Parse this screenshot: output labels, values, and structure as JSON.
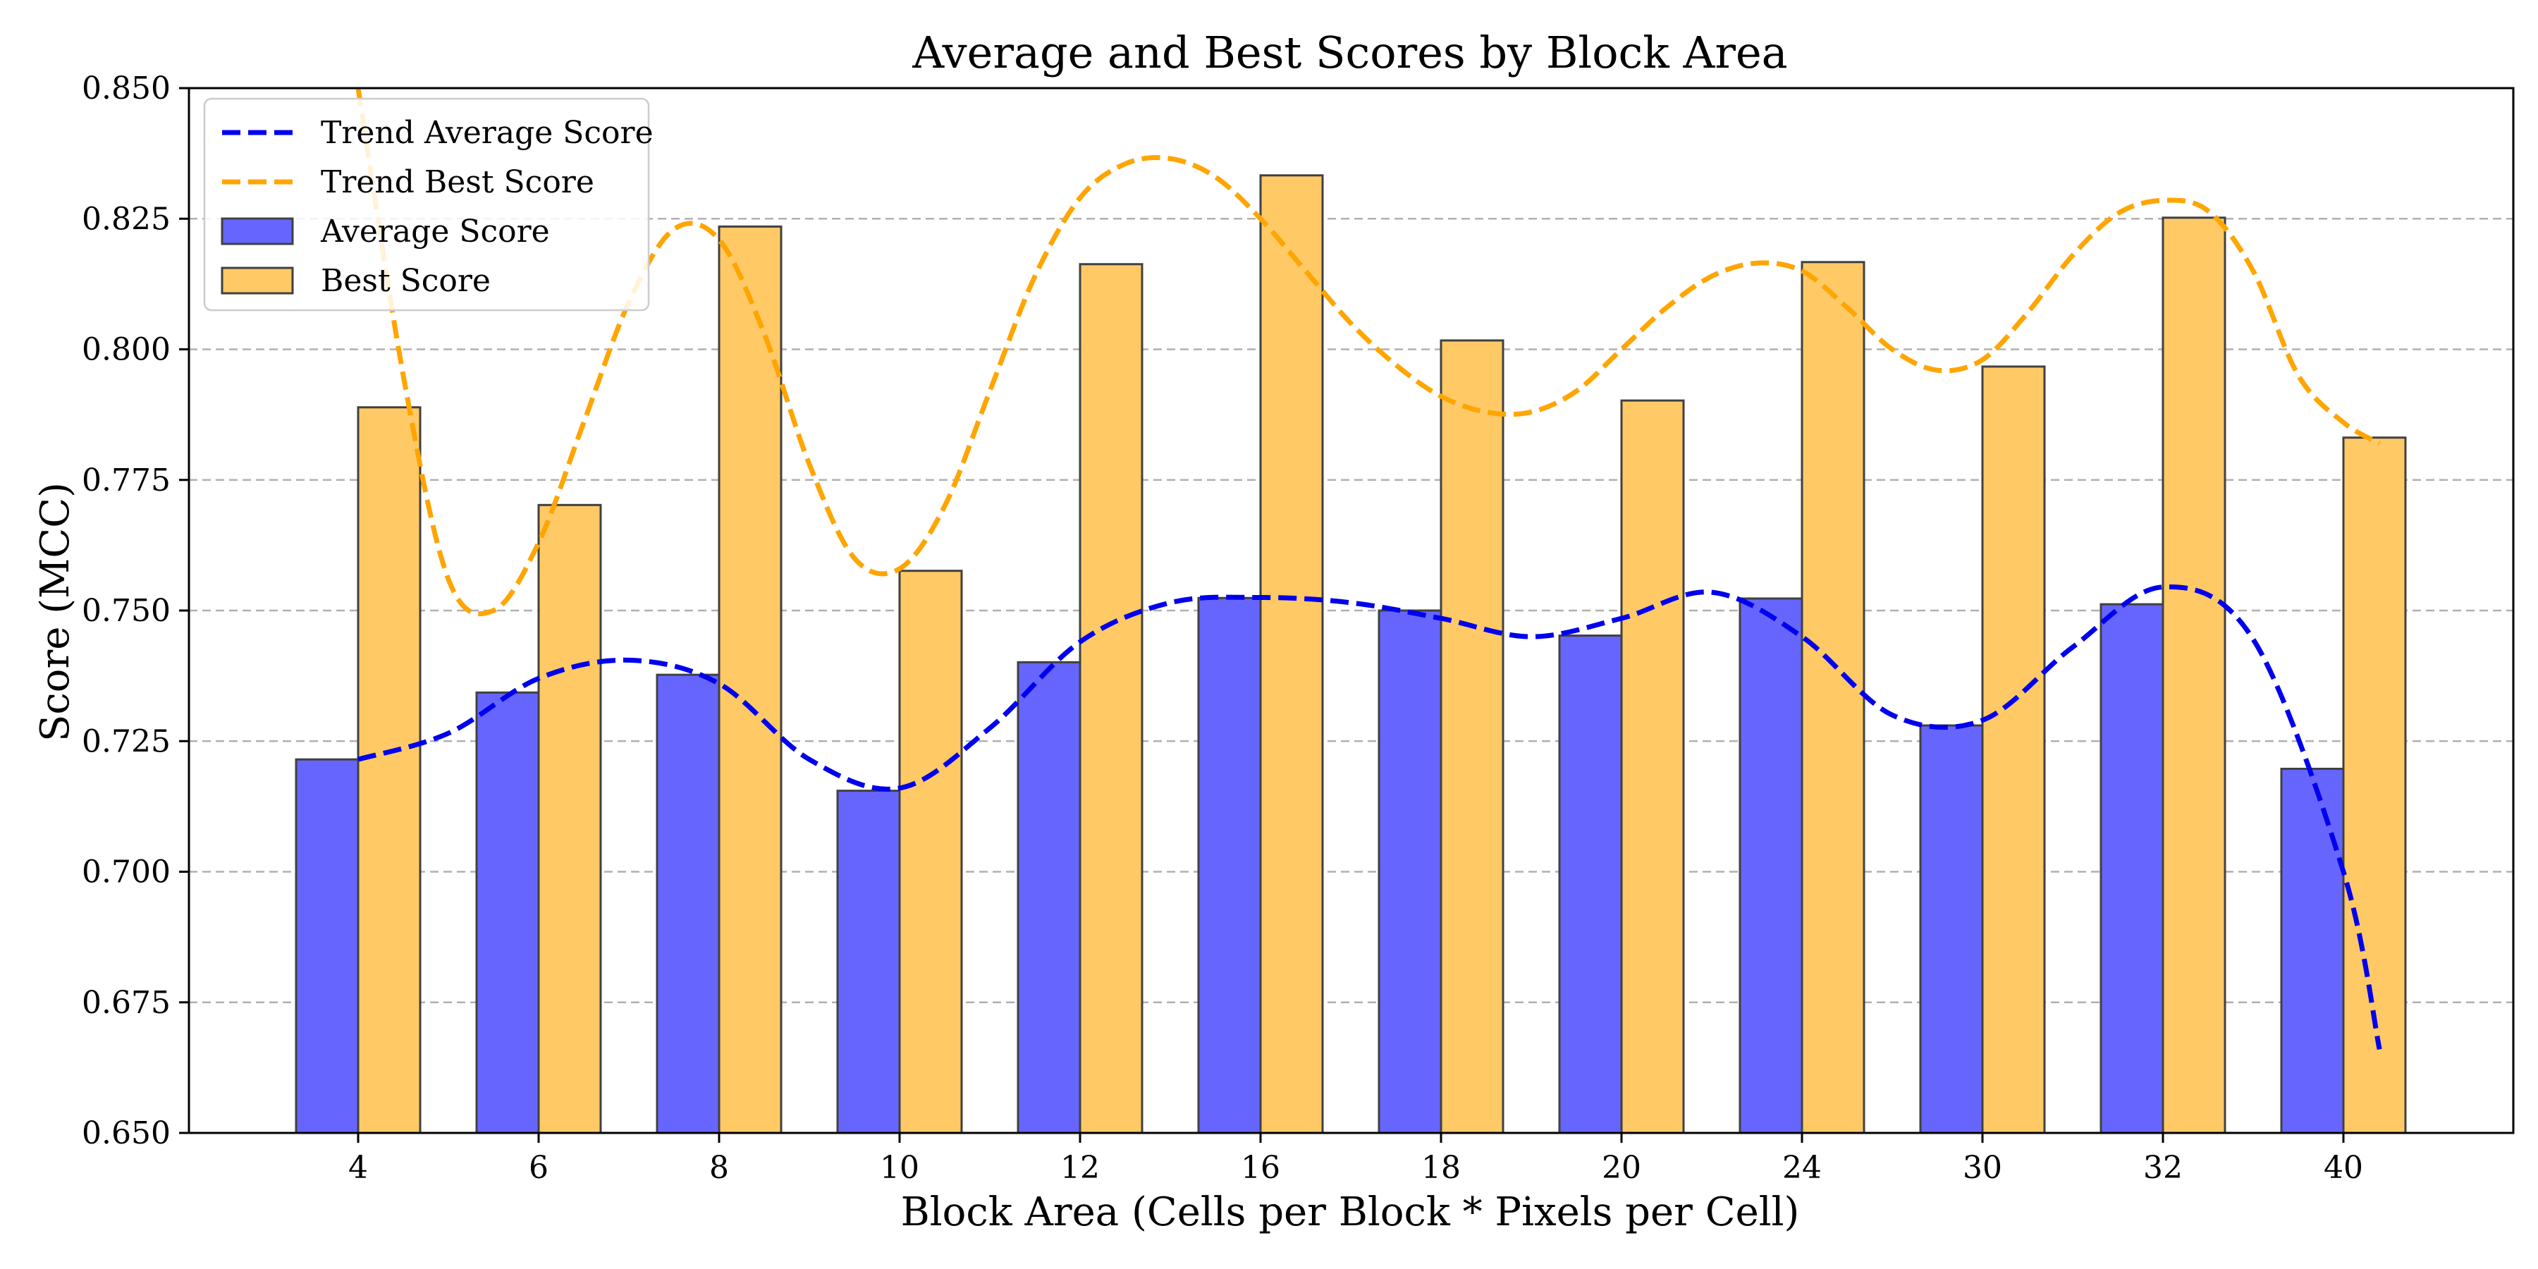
{
  "chart_data": {
    "type": "bar",
    "title": "Average and Best Scores by Block Area",
    "xlabel": "Block Area (Cells per Block * Pixels per Cell)",
    "ylabel": "Score (MCC)",
    "categories": [
      "4",
      "6",
      "8",
      "10",
      "12",
      "16",
      "18",
      "20",
      "24",
      "30",
      "32",
      "40"
    ],
    "ylim": [
      0.65,
      0.85
    ],
    "yticks": [
      "0.650",
      "0.675",
      "0.700",
      "0.725",
      "0.750",
      "0.775",
      "0.800",
      "0.825",
      "0.850"
    ],
    "grid": "horizontal dashed",
    "legend_position": "upper-left",
    "series": [
      {
        "name": "Average Score",
        "kind": "bar",
        "color": "#6666ff",
        "values": [
          0.7215,
          0.7343,
          0.7377,
          0.7155,
          0.7401,
          0.7524,
          0.75,
          0.7452,
          0.7523,
          0.728,
          0.7512,
          0.7197
        ]
      },
      {
        "name": "Best Score",
        "kind": "bar",
        "color": "#ffc966",
        "values": [
          0.7889,
          0.7702,
          0.8235,
          0.7576,
          0.8163,
          0.8333,
          0.8017,
          0.7902,
          0.8167,
          0.7967,
          0.8252,
          0.7831
        ]
      },
      {
        "name": "Trend Average Score",
        "kind": "dashed-line",
        "color": "#0000ee",
        "x": [
          0,
          0.5,
          1,
          1.5,
          2,
          2.5,
          3,
          3.5,
          4,
          4.5,
          5,
          5.5,
          6,
          6.5,
          7,
          7.5,
          8,
          8.5,
          9,
          9.5,
          10,
          10.5,
          11,
          11.2
        ],
        "values": [
          0.7215,
          0.7265,
          0.737,
          0.7405,
          0.736,
          0.7215,
          0.716,
          0.7275,
          0.744,
          0.7515,
          0.7525,
          0.7515,
          0.7485,
          0.745,
          0.7485,
          0.7535,
          0.745,
          0.73,
          0.729,
          0.743,
          0.7545,
          0.7445,
          0.7,
          0.666
        ]
      },
      {
        "name": "Trend Best Score",
        "kind": "dashed-line",
        "color": "#ffa500",
        "x": [
          0,
          0.25,
          0.5,
          0.75,
          1,
          1.25,
          1.5,
          1.75,
          2,
          2.25,
          2.5,
          2.75,
          3,
          3.25,
          3.5,
          3.75,
          4,
          4.25,
          4.5,
          4.75,
          5,
          5.25,
          5.5,
          5.75,
          6,
          6.25,
          6.5,
          6.75,
          7,
          7.25,
          7.5,
          7.75,
          8,
          8.25,
          8.5,
          8.75,
          9,
          9.25,
          9.5,
          9.75,
          10,
          10.25,
          10.5,
          10.75,
          11,
          11.2
        ],
        "values": [
          0.85,
          0.795,
          0.756,
          0.75,
          0.763,
          0.786,
          0.809,
          0.823,
          0.821,
          0.803,
          0.778,
          0.76,
          0.758,
          0.77,
          0.792,
          0.814,
          0.829,
          0.8355,
          0.8365,
          0.833,
          0.825,
          0.815,
          0.805,
          0.797,
          0.791,
          0.788,
          0.788,
          0.792,
          0.8,
          0.808,
          0.814,
          0.8165,
          0.815,
          0.808,
          0.8,
          0.796,
          0.798,
          0.807,
          0.818,
          0.826,
          0.8285,
          0.8265,
          0.815,
          0.795,
          0.786,
          0.782
        ]
      }
    ]
  }
}
